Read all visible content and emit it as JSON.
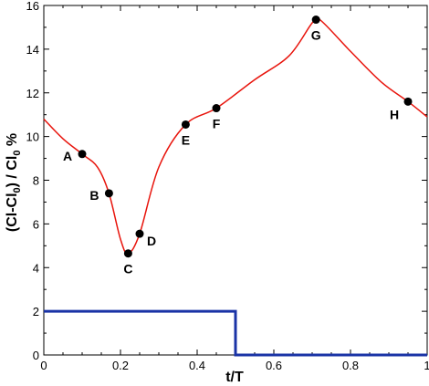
{
  "chart_data": {
    "type": "line",
    "xlabel": "t/T",
    "ylabel": {
      "base": "(Cl-Cl",
      "sub1": "0",
      "mid": ") / Cl",
      "sub2": "0",
      "tail": " %"
    },
    "xlim": [
      0,
      1
    ],
    "ylim": [
      0,
      16
    ],
    "xticks": [
      "0",
      "0.2",
      "0.4",
      "0.6",
      "0.8",
      "1"
    ],
    "yticks": [
      "0",
      "2",
      "4",
      "6",
      "8",
      "10",
      "12",
      "14",
      "16"
    ],
    "grid": false,
    "colors": {
      "curve": "#e8140c",
      "step": "#1a33a6",
      "marker": "#000000"
    },
    "series": [
      {
        "style": "smooth-line",
        "x": [
          0.0,
          0.05,
          0.1,
          0.14,
          0.17,
          0.2,
          0.22,
          0.25,
          0.3,
          0.37,
          0.45,
          0.55,
          0.64,
          0.7,
          0.72,
          0.8,
          0.88,
          0.95,
          1.0
        ],
        "y": [
          10.8,
          9.9,
          9.2,
          8.6,
          7.4,
          5.3,
          4.65,
          5.55,
          8.6,
          10.55,
          11.3,
          12.6,
          13.7,
          15.2,
          15.35,
          13.9,
          12.5,
          11.6,
          10.9
        ]
      },
      {
        "style": "step",
        "x": [
          0.0,
          0.5,
          0.5,
          1.0
        ],
        "y": [
          2.0,
          2.0,
          0.0,
          0.0
        ]
      }
    ],
    "points": [
      {
        "label": "A",
        "x": 0.1,
        "y": 9.2,
        "pos": "left"
      },
      {
        "label": "B",
        "x": 0.17,
        "y": 7.4,
        "pos": "left"
      },
      {
        "label": "C",
        "x": 0.22,
        "y": 4.65,
        "pos": "below"
      },
      {
        "label": "D",
        "x": 0.25,
        "y": 5.55,
        "pos": "right-below"
      },
      {
        "label": "E",
        "x": 0.37,
        "y": 10.55,
        "pos": "below"
      },
      {
        "label": "F",
        "x": 0.45,
        "y": 11.3,
        "pos": "below"
      },
      {
        "label": "G",
        "x": 0.71,
        "y": 15.35,
        "pos": "below"
      },
      {
        "label": "H",
        "x": 0.95,
        "y": 11.6,
        "pos": "left-below"
      }
    ]
  }
}
